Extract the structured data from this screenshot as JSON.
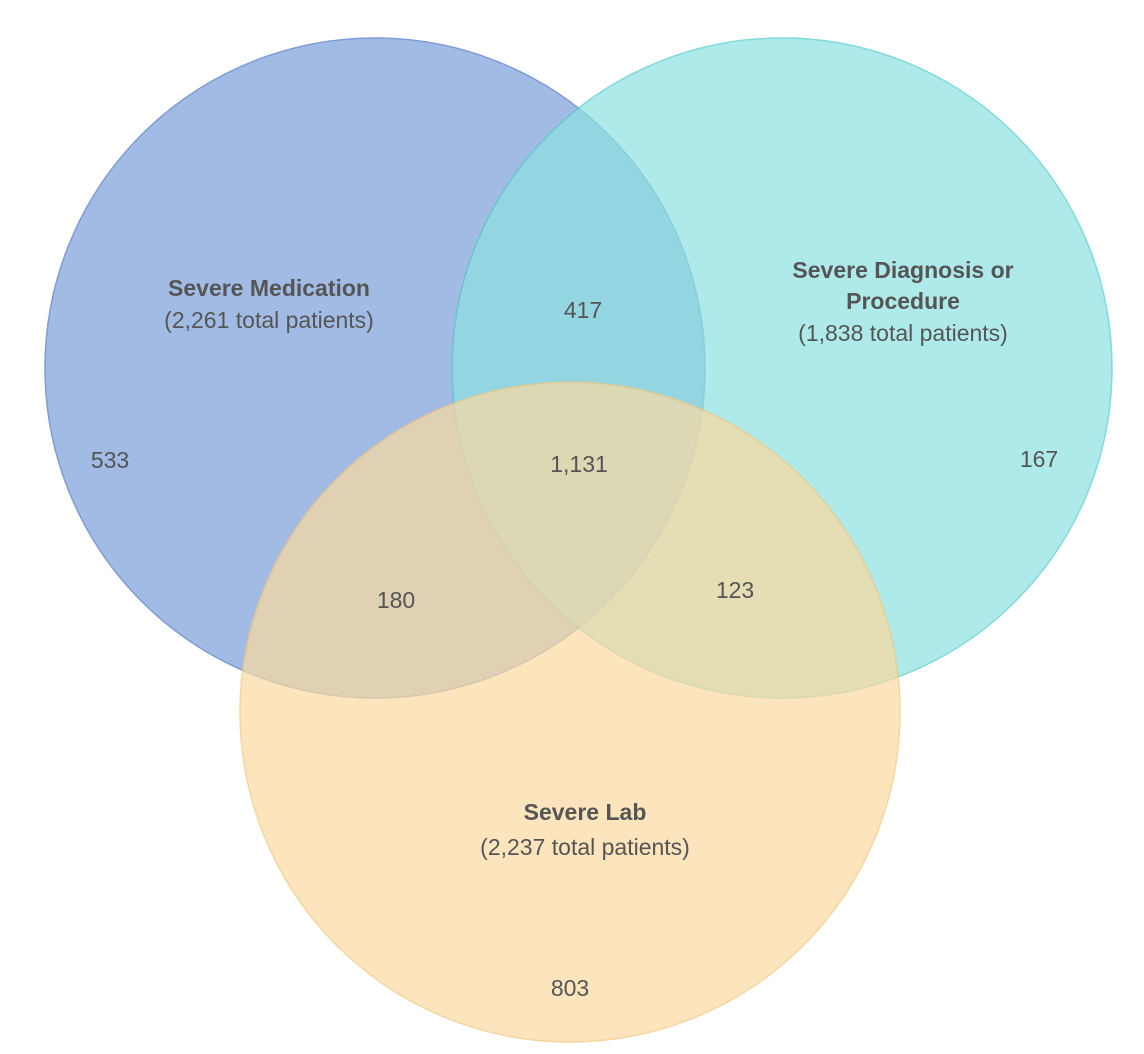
{
  "text_color": "#555555",
  "sets": {
    "medication": {
      "title_lines": [
        "Severe Medication"
      ],
      "total_label": "(2,261 total patients)",
      "fill": "#7a9fd9",
      "stroke": "#4a74c0"
    },
    "diagnosis": {
      "title_lines": [
        "Severe Diagnosis or",
        "Procedure"
      ],
      "total_label": "(1,838 total patients)",
      "fill": "#8ee2e2",
      "stroke": "#4fc9c9"
    },
    "lab": {
      "title_lines": [
        "Severe Lab"
      ],
      "total_label": "(2,237 total patients)",
      "fill": "#fcd9a0",
      "stroke": "#f2c57c"
    }
  },
  "regions": {
    "medication_only": "533",
    "diagnosis_only": "167",
    "lab_only": "803",
    "medication_diagnosis": "417",
    "medication_lab": "180",
    "diagnosis_lab": "123",
    "all_three": "1,131"
  }
}
